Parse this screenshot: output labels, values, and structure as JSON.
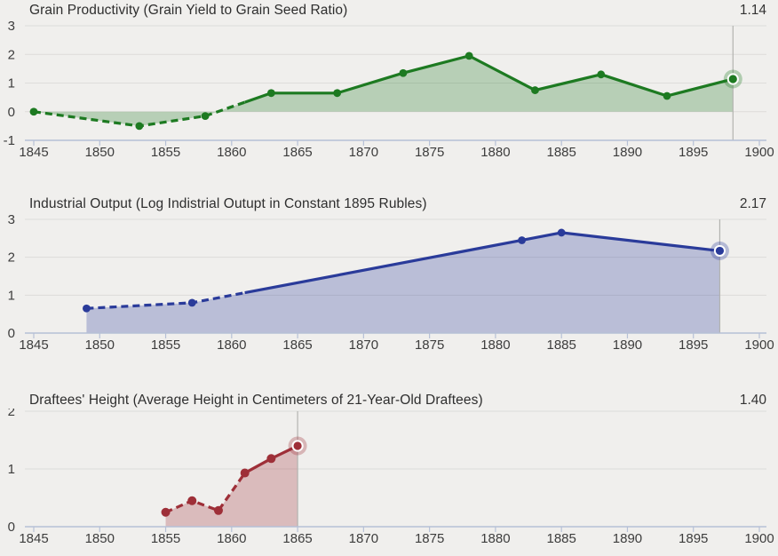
{
  "style": {
    "background": "#f0efed",
    "grid_color": "#dddcda",
    "axis_color": "#b6c0d6",
    "tick_label_color": "#3d3d3d",
    "title_color": "#2e2e2e",
    "value_color": "#333333",
    "tracker_line_color": "#b3b3b0",
    "highlight_ring_color": "#fdfdfd"
  },
  "chart_data": [
    {
      "type": "area",
      "title": "Grain Productivity (Grain Yield to Grain Seed Ratio)",
      "current_value_label": "1.14",
      "line_color": "#1d7a21",
      "fill_opacity": 0.27,
      "x": [
        1845,
        1853,
        1858,
        1863,
        1868,
        1873,
        1878,
        1883,
        1888,
        1893,
        1898
      ],
      "y": [
        0.0,
        -0.5,
        -0.15,
        0.65,
        0.65,
        1.35,
        1.95,
        0.75,
        1.3,
        0.55,
        1.14
      ],
      "xlim": [
        1845,
        1900
      ],
      "ylim": [
        -1,
        3
      ],
      "x_ticks": [
        1845,
        1850,
        1855,
        1860,
        1865,
        1870,
        1875,
        1880,
        1885,
        1890,
        1895,
        1900
      ],
      "y_ticks": [
        -1,
        0,
        1,
        2,
        3
      ],
      "baseline": 0,
      "dashed_before_x": 1861,
      "highlight": {
        "x": 1898,
        "y": 1.14
      },
      "dot_radius": 4.4,
      "grid": true,
      "legend": false
    },
    {
      "type": "area",
      "title": "Industrial Output (Log Indistrial Outupt in Constant 1895 Rubles)",
      "current_value_label": "2.17",
      "line_color": "#2a3b9a",
      "fill_opacity": 0.27,
      "x": [
        1849,
        1857,
        1882,
        1885,
        1897
      ],
      "y": [
        0.65,
        0.8,
        2.45,
        2.65,
        2.17
      ],
      "xlim": [
        1845,
        1900
      ],
      "ylim": [
        0,
        3
      ],
      "x_ticks": [
        1845,
        1850,
        1855,
        1860,
        1865,
        1870,
        1875,
        1880,
        1885,
        1890,
        1895,
        1900
      ],
      "y_ticks": [
        0,
        1,
        2,
        3
      ],
      "baseline": 0,
      "dashed_before_x": 1861,
      "highlight": {
        "x": 1897,
        "y": 2.17
      },
      "dot_radius": 4.4,
      "grid": true,
      "legend": false
    },
    {
      "type": "area",
      "title": "Draftees' Height (Average Height in Centimeters of 21-Year-Old Draftees)",
      "current_value_label": "1.40",
      "line_color": "#9e2f38",
      "fill_opacity": 0.27,
      "x": [
        1855,
        1857,
        1859,
        1861,
        1863,
        1865
      ],
      "y": [
        0.25,
        0.45,
        0.28,
        0.93,
        1.18,
        1.4
      ],
      "xlim": [
        1845,
        1900
      ],
      "ylim": [
        0,
        2
      ],
      "x_ticks": [
        1845,
        1850,
        1855,
        1860,
        1865,
        1870,
        1875,
        1880,
        1885,
        1890,
        1895,
        1900
      ],
      "y_ticks": [
        0,
        1,
        2
      ],
      "baseline": 0,
      "dashed_before_x": 1861,
      "highlight": {
        "x": 1865,
        "y": 1.4
      },
      "dot_radius": 5,
      "grid": true,
      "legend": false
    }
  ]
}
